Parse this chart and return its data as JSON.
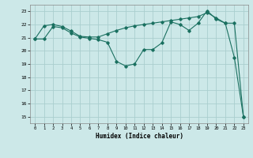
{
  "xlabel": "Humidex (Indice chaleur)",
  "xlim": [
    -0.5,
    23.5
  ],
  "ylim": [
    14.5,
    23.5
  ],
  "yticks": [
    15,
    16,
    17,
    18,
    19,
    20,
    21,
    22,
    23
  ],
  "xticks": [
    0,
    1,
    2,
    3,
    4,
    5,
    6,
    7,
    8,
    9,
    10,
    11,
    12,
    13,
    14,
    15,
    16,
    17,
    18,
    19,
    20,
    21,
    22,
    23
  ],
  "bg_color": "#cce8e8",
  "grid_color": "#aacece",
  "line_color": "#1a7060",
  "line1_x": [
    0,
    1,
    2,
    3,
    4,
    5,
    6,
    7,
    8,
    9,
    10,
    11,
    12,
    13,
    14,
    15,
    16,
    17,
    18,
    19,
    20,
    21,
    22,
    23
  ],
  "line1_y": [
    20.9,
    21.9,
    22.0,
    21.85,
    21.5,
    21.1,
    21.05,
    21.05,
    21.3,
    21.55,
    21.75,
    21.9,
    22.0,
    22.1,
    22.2,
    22.3,
    22.4,
    22.5,
    22.6,
    22.9,
    22.5,
    22.1,
    22.1,
    15.0
  ],
  "line2_x": [
    0,
    1,
    2,
    3,
    4,
    5,
    6,
    7,
    8,
    9,
    10,
    11,
    12,
    13,
    14,
    15,
    16,
    17,
    18,
    19,
    20,
    21,
    22,
    23
  ],
  "line2_y": [
    20.9,
    20.9,
    21.85,
    21.75,
    21.35,
    21.05,
    20.95,
    20.85,
    20.65,
    19.2,
    18.85,
    19.0,
    20.1,
    20.1,
    20.6,
    22.2,
    22.0,
    21.55,
    22.1,
    23.05,
    22.4,
    22.1,
    19.5,
    15.0
  ]
}
